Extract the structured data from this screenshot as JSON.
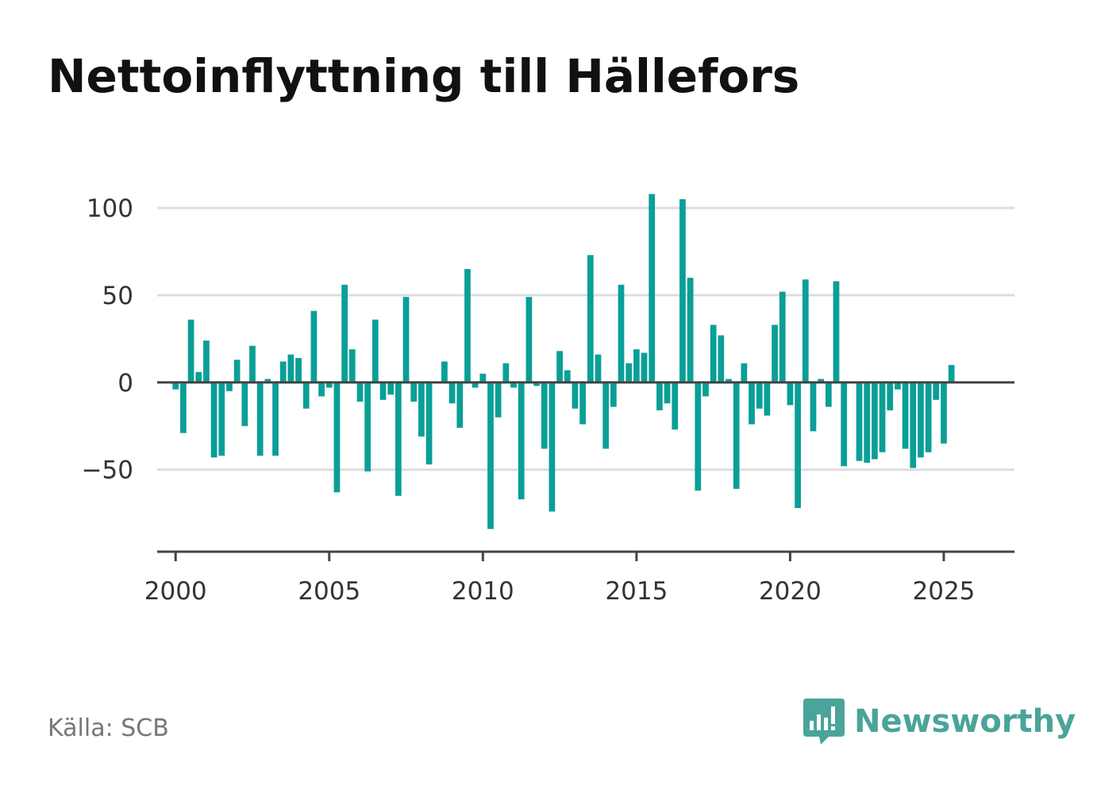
{
  "header": {
    "title": "Nettoinflyttning till Hällefors"
  },
  "footer": {
    "source": "Källa: SCB",
    "brand": "Newsworthy"
  },
  "colors": {
    "bar": "#0a9f97",
    "grid": "#dddddd",
    "axis": "#444444",
    "brand": "#4aa49a"
  },
  "icons": {
    "brand_logo": "bar-chart-speech-bubble-icon"
  },
  "chart_data": {
    "type": "bar",
    "title": "Nettoinflyttning till Hällefors",
    "xlabel": "",
    "ylabel": "",
    "ylim": [
      -97,
      110
    ],
    "xlim": [
      1999.4,
      2027.3
    ],
    "yticks": [
      100,
      50,
      0,
      -50
    ],
    "ytick_labels": [
      "100",
      "50",
      "0",
      "−50"
    ],
    "xticks": [
      2000,
      2005,
      2010,
      2015,
      2020,
      2025
    ],
    "xtick_labels": [
      "2000",
      "2005",
      "2010",
      "2015",
      "2020",
      "2025"
    ],
    "grid": true,
    "x": [
      2000.0,
      2000.25,
      2000.5,
      2000.75,
      2001.0,
      2001.25,
      2001.5,
      2001.75,
      2002.0,
      2002.25,
      2002.5,
      2002.75,
      2003.0,
      2003.25,
      2003.5,
      2003.75,
      2004.0,
      2004.25,
      2004.5,
      2004.75,
      2005.0,
      2005.25,
      2005.5,
      2005.75,
      2006.0,
      2006.25,
      2006.5,
      2006.75,
      2007.0,
      2007.25,
      2007.5,
      2007.75,
      2008.0,
      2008.25,
      2008.5,
      2008.75,
      2009.0,
      2009.25,
      2009.5,
      2009.75,
      2010.0,
      2010.25,
      2010.5,
      2010.75,
      2011.0,
      2011.25,
      2011.5,
      2011.75,
      2012.0,
      2012.25,
      2012.5,
      2012.75,
      2013.0,
      2013.25,
      2013.5,
      2013.75,
      2014.0,
      2014.25,
      2014.5,
      2014.75,
      2015.0,
      2015.25,
      2015.5,
      2015.75,
      2016.0,
      2016.25,
      2016.5,
      2016.75,
      2017.0,
      2017.25,
      2017.5,
      2017.75,
      2018.0,
      2018.25,
      2018.5,
      2018.75,
      2019.0,
      2019.25,
      2019.5,
      2019.75,
      2020.0,
      2020.25,
      2020.5,
      2020.75,
      2021.0,
      2021.25,
      2021.5,
      2021.75,
      2022.0,
      2022.25,
      2022.5,
      2022.75,
      2023.0,
      2023.25,
      2023.5,
      2023.75,
      2024.0,
      2024.25,
      2024.5,
      2024.75,
      2025.0,
      2025.25
    ],
    "series": [
      {
        "values": [
          -4,
          -29,
          36,
          6,
          24,
          -43,
          -42,
          -5,
          13,
          -25,
          21,
          -42,
          2,
          -42,
          12,
          16,
          14,
          -15,
          41,
          -8,
          -3,
          -63,
          56,
          19,
          -11,
          -51,
          36,
          -10,
          -7,
          -65,
          49,
          -11,
          -31,
          -47,
          0,
          12,
          -12,
          -26,
          65,
          -3,
          5,
          -84,
          -20,
          11,
          -3,
          -67,
          49,
          -2,
          -38,
          -74,
          18,
          7,
          -15,
          -24,
          73,
          16,
          -38,
          -14,
          56,
          11,
          19,
          17,
          108,
          -16,
          -12,
          -27,
          105,
          60,
          -62,
          -8,
          33,
          27,
          2,
          -61,
          11,
          -24,
          -15,
          -19,
          33,
          52,
          -13,
          -72,
          59,
          -28,
          2,
          -14,
          58,
          -48,
          0,
          -45,
          -46,
          -44,
          -40,
          -16,
          -4,
          -38,
          -49,
          -43,
          -40,
          -10,
          -35,
          10
        ]
      }
    ]
  }
}
